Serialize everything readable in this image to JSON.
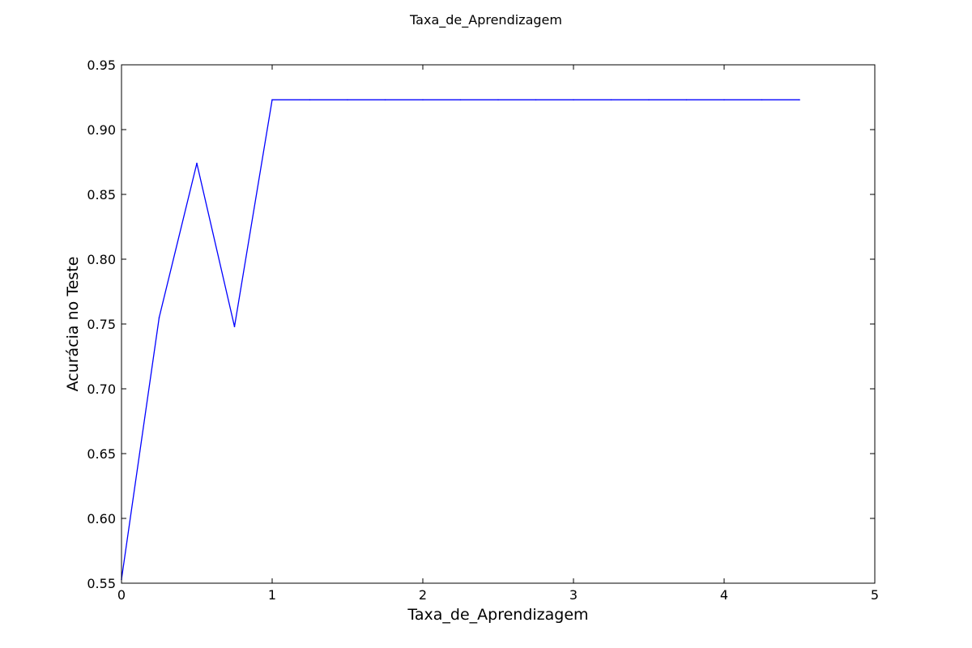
{
  "chart_data": {
    "type": "line",
    "title": "Taxa_de_Aprendizagem",
    "xlabel": "Taxa_de_Aprendizagem",
    "ylabel": "Acurácia no Teste",
    "xlim": [
      0,
      5
    ],
    "ylim": [
      0.55,
      0.95
    ],
    "xticks": [
      "0",
      "1",
      "2",
      "3",
      "4",
      "5"
    ],
    "yticks": [
      "0.55",
      "0.60",
      "0.65",
      "0.70",
      "0.75",
      "0.80",
      "0.85",
      "0.90",
      "0.95"
    ],
    "grid": false,
    "legend": "none",
    "series": [
      {
        "color": "#0000ff",
        "x": [
          0,
          0.25,
          0.5,
          0.75,
          1.0,
          1.25,
          1.5,
          1.75,
          2.0,
          2.25,
          2.5,
          2.75,
          3.0,
          3.25,
          3.5,
          3.75,
          4.0,
          4.25,
          4.5
        ],
        "y": [
          0.553,
          0.755,
          0.874,
          0.748,
          0.923,
          0.923,
          0.923,
          0.923,
          0.923,
          0.923,
          0.923,
          0.923,
          0.923,
          0.923,
          0.923,
          0.923,
          0.923,
          0.923,
          0.923
        ]
      }
    ]
  }
}
